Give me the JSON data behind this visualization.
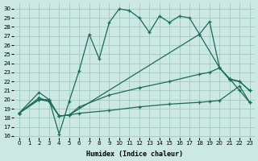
{
  "xlabel": "Humidex (Indice chaleur)",
  "bg_color": "#cce8e2",
  "grid_color": "#a8cec8",
  "line_color": "#1a6b5a",
  "xlim": [
    -0.5,
    23.5
  ],
  "ylim": [
    15.8,
    30.6
  ],
  "xticks": [
    0,
    1,
    2,
    3,
    4,
    5,
    6,
    7,
    8,
    9,
    10,
    11,
    12,
    13,
    14,
    15,
    16,
    17,
    18,
    19,
    20,
    21,
    22,
    23
  ],
  "yticks": [
    16,
    17,
    18,
    19,
    20,
    21,
    22,
    23,
    24,
    25,
    26,
    27,
    28,
    29,
    30
  ],
  "line1_x": [
    0,
    2,
    3,
    4,
    5,
    6,
    7,
    8,
    9,
    10,
    11,
    12,
    13,
    14,
    15,
    16,
    17,
    18,
    19,
    20,
    21,
    22,
    23
  ],
  "line1_y": [
    18.5,
    20.8,
    20.0,
    16.2,
    19.8,
    23.2,
    27.2,
    24.5,
    28.5,
    30.0,
    29.8,
    29.0,
    27.4,
    29.2,
    28.5,
    29.2,
    29.0,
    27.2,
    28.6,
    23.5,
    22.3,
    21.0,
    19.7
  ],
  "line2_x": [
    0,
    2,
    3,
    4,
    5,
    18,
    20,
    21,
    22,
    23
  ],
  "line2_y": [
    18.5,
    20.0,
    20.0,
    18.2,
    18.3,
    27.2,
    23.5,
    22.2,
    22.0,
    21.0
  ],
  "line3_x": [
    0,
    2,
    3,
    4,
    5,
    6,
    9,
    12,
    15,
    18,
    19,
    20,
    21,
    22,
    23
  ],
  "line3_y": [
    18.5,
    20.2,
    19.8,
    18.2,
    18.3,
    19.2,
    20.5,
    21.3,
    22.0,
    22.8,
    23.0,
    23.5,
    22.3,
    22.0,
    21.0
  ],
  "line4_x": [
    0,
    2,
    3,
    4,
    5,
    6,
    9,
    12,
    15,
    18,
    19,
    20,
    22,
    23
  ],
  "line4_y": [
    18.5,
    20.0,
    19.8,
    18.2,
    18.3,
    18.5,
    18.8,
    19.2,
    19.5,
    19.7,
    19.8,
    19.9,
    21.5,
    19.7
  ]
}
